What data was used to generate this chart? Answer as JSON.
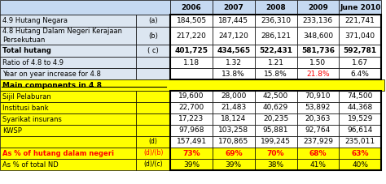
{
  "headers": [
    "",
    "",
    "2006",
    "2007",
    "2008",
    "2009",
    "June 2010"
  ],
  "rows": [
    {
      "label": "4.9 Hutang Negara",
      "ref": "(a)",
      "values": [
        "184,505",
        "187,445",
        "236,310",
        "233,136",
        "221,741"
      ],
      "bold": false,
      "bg": "lightblue_top",
      "text_color": "black"
    },
    {
      "label": "4.8 Hutang Dalam Negeri Kerajaan\nPersekutuan",
      "ref": "(b)",
      "values": [
        "217,220",
        "247,120",
        "286,121",
        "348,600",
        "371,040"
      ],
      "bold": false,
      "bg": "lightblue_top",
      "text_color": "black"
    },
    {
      "label": "Total hutang",
      "ref": "( c)",
      "values": [
        "401,725",
        "434,565",
        "522,431",
        "581,736",
        "592,781"
      ],
      "bold": true,
      "bg": "lightblue_top",
      "text_color": "black"
    },
    {
      "label": "Ratio of 4.8 to 4.9",
      "ref": "",
      "values": [
        "1.18",
        "1.32",
        "1.21",
        "1.50",
        "1.67"
      ],
      "bold": false,
      "bg": "lightblue_top",
      "text_color": "black"
    },
    {
      "label": "Year on year increase for 4.8",
      "ref": "",
      "values": [
        "",
        "13.8%",
        "15.8%",
        "21.8%",
        "6.4%"
      ],
      "bold": false,
      "bg": "lightblue_top",
      "text_color": "black",
      "special_col": 3
    }
  ],
  "section_header": "Main components in 4.8",
  "rows2": [
    {
      "label": "Sijil Pelaburan",
      "ref": "",
      "values": [
        "19,600",
        "28,000",
        "42,500",
        "70,910",
        "74,500"
      ],
      "bold": false,
      "bg": "yellow",
      "text_color": "black"
    },
    {
      "label": "Institusi bank",
      "ref": "",
      "values": [
        "22,700",
        "21,483",
        "40,629",
        "53,892",
        "44,368"
      ],
      "bold": false,
      "bg": "yellow",
      "text_color": "black"
    },
    {
      "label": "Syarikat insurans",
      "ref": "",
      "values": [
        "17,223",
        "18,124",
        "20,235",
        "20,363",
        "19,529"
      ],
      "bold": false,
      "bg": "yellow",
      "text_color": "black"
    },
    {
      "label": "KWSP",
      "ref": "",
      "values": [
        "97,968",
        "103,258",
        "95,881",
        "92,764",
        "96,614"
      ],
      "bold": false,
      "bg": "yellow",
      "text_color": "black"
    },
    {
      "label": "",
      "ref": "(d)",
      "values": [
        "157,491",
        "170,865",
        "199,245",
        "237,929",
        "235,011"
      ],
      "bold": false,
      "bg": "yellow",
      "text_color": "black"
    },
    {
      "label": "As % of hutang dalam negeri",
      "ref": "(d)/(b)",
      "values": [
        "73%",
        "69%",
        "70%",
        "68%",
        "63%"
      ],
      "bold": true,
      "bg": "yellow",
      "text_color": "red"
    },
    {
      "label": "As % of total ND",
      "ref": "(d)/(c)",
      "values": [
        "39%",
        "39%",
        "38%",
        "41%",
        "40%"
      ],
      "bold": false,
      "bg": "yellow",
      "text_color": "black"
    }
  ],
  "colors": {
    "header_bg": "#c5d9f1",
    "top_section_bg": "#dce6f1",
    "yellow_bg": "#ffff00",
    "border": "#000000",
    "header_text": "#000000",
    "red": "#ff0000",
    "data_box_bg": "#ffffff"
  }
}
